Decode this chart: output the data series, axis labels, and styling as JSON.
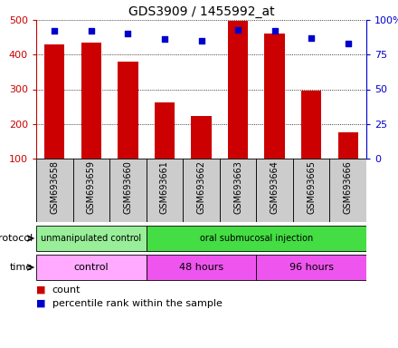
{
  "title": "GDS3909 / 1455992_at",
  "samples": [
    "GSM693658",
    "GSM693659",
    "GSM693660",
    "GSM693661",
    "GSM693662",
    "GSM693663",
    "GSM693664",
    "GSM693665",
    "GSM693666"
  ],
  "counts": [
    430,
    435,
    380,
    263,
    224,
    498,
    460,
    296,
    176
  ],
  "percentile_ranks": [
    92,
    92,
    90,
    86,
    85,
    93,
    92,
    87,
    83
  ],
  "ylim_left": [
    100,
    500
  ],
  "ylim_right": [
    0,
    100
  ],
  "yticks_left": [
    100,
    200,
    300,
    400,
    500
  ],
  "yticks_right": [
    0,
    25,
    50,
    75,
    100
  ],
  "ytick_right_labels": [
    "0",
    "25",
    "50",
    "75",
    "100%"
  ],
  "bar_color": "#cc0000",
  "scatter_color": "#0000cc",
  "bar_bottom": 100,
  "protocol_groups": [
    {
      "label": "unmanipulated control",
      "start": 0,
      "end": 3,
      "color": "#99ee99"
    },
    {
      "label": "oral submucosal injection",
      "start": 3,
      "end": 9,
      "color": "#44dd44"
    }
  ],
  "time_groups": [
    {
      "label": "control",
      "start": 0,
      "end": 3,
      "color": "#ffaaff"
    },
    {
      "label": "48 hours",
      "start": 3,
      "end": 6,
      "color": "#ee55ee"
    },
    {
      "label": "96 hours",
      "start": 6,
      "end": 9,
      "color": "#ee55ee"
    }
  ],
  "legend_count_color": "#cc0000",
  "legend_percentile_color": "#0000cc",
  "background_color": "#ffffff",
  "left_axis_color": "#cc0000",
  "right_axis_color": "#0000cc"
}
